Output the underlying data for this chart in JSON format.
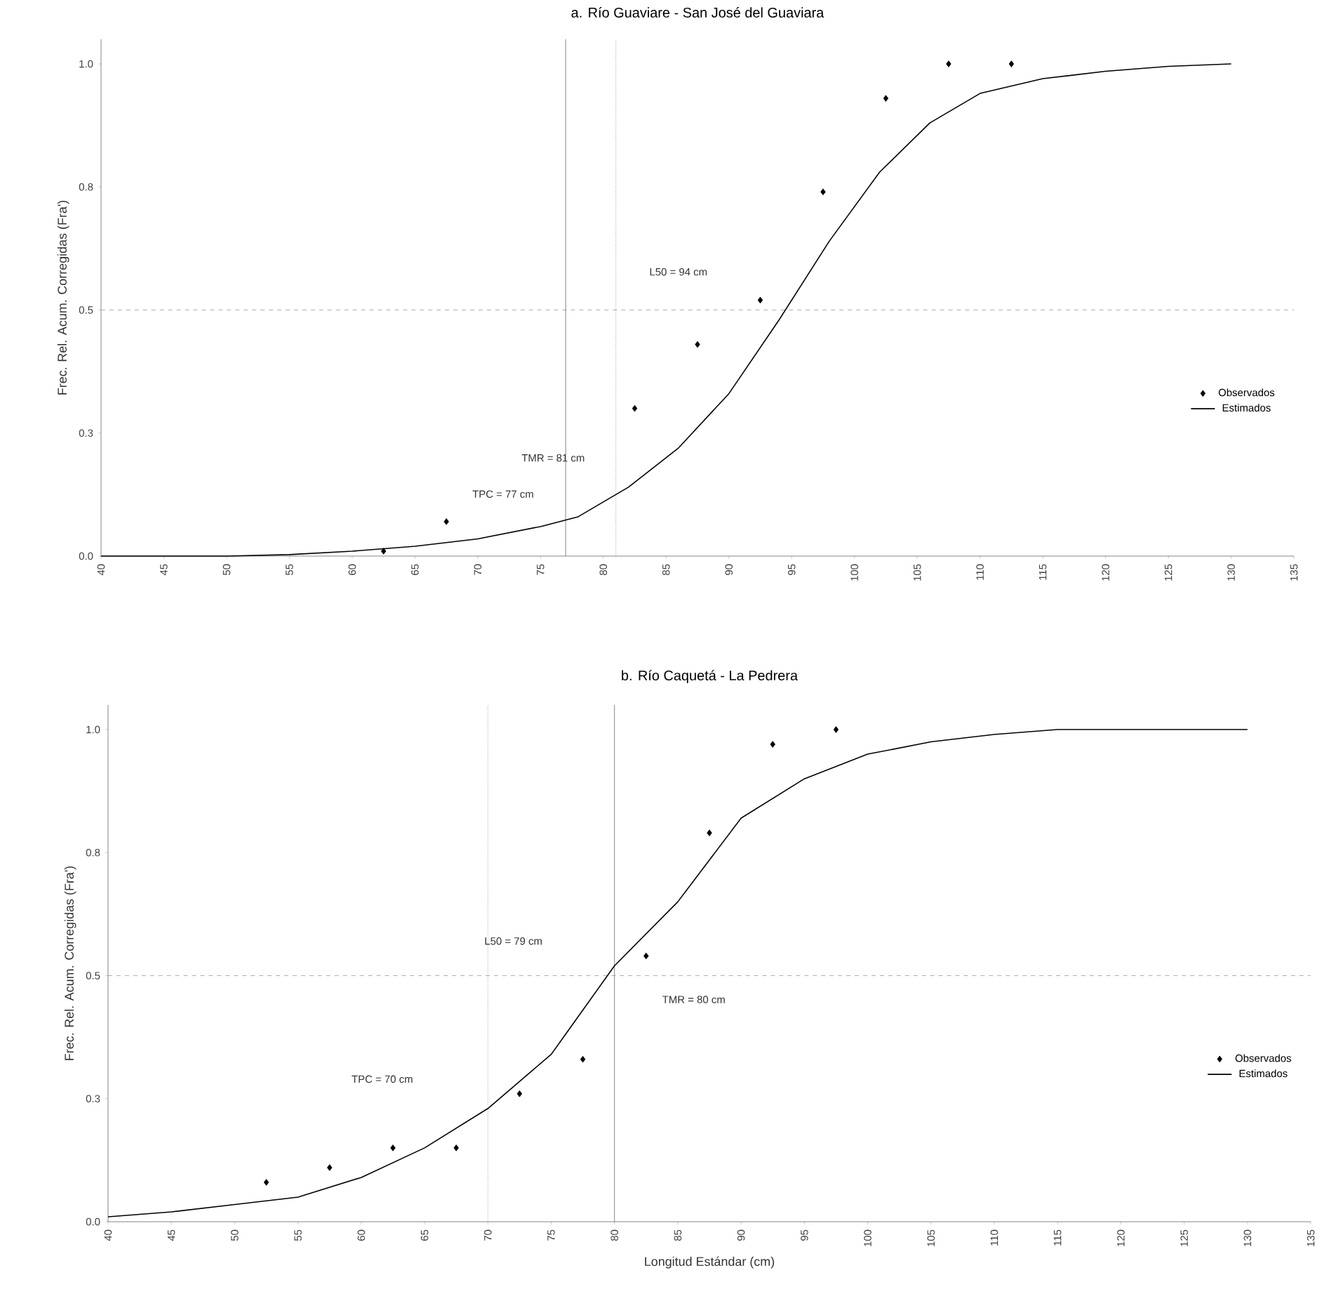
{
  "chart_data": [
    {
      "type": "scatter",
      "title": "a. Río Guaviare - San José del Guaviara",
      "ylabel": "Frec. Rel. Acum. Corregidas (Fra')",
      "xlim": [
        40,
        135
      ],
      "xticks": [
        40,
        45,
        50,
        55,
        60,
        65,
        70,
        75,
        80,
        85,
        90,
        95,
        100,
        105,
        110,
        115,
        120,
        125,
        130,
        135
      ],
      "ylim": [
        0,
        1.05
      ],
      "yticks": [
        {
          "value": 0,
          "label": "0.0"
        },
        {
          "value": 0.25,
          "label": "0.3"
        },
        {
          "value": 0.5,
          "label": "0.5"
        },
        {
          "value": 0.75,
          "label": "0.8"
        },
        {
          "value": 1.0,
          "label": "1.0"
        }
      ],
      "legend": "right",
      "series": [
        {
          "name": "Observados",
          "marker": "diamond",
          "color": "#000000",
          "x": [
            62.5,
            67.5,
            82.5,
            87.5,
            92.5,
            97.5,
            102.5,
            107.5,
            112.5
          ],
          "values": [
            0.01,
            0.07,
            0.3,
            0.43,
            0.52,
            0.74,
            0.93,
            1.0,
            1.0
          ]
        },
        {
          "name": "Estimados",
          "type": "line",
          "color": "#000000",
          "x": [
            40,
            50,
            55,
            60,
            65,
            70,
            75,
            78,
            82,
            86,
            90,
            94,
            98,
            102,
            106,
            110,
            115,
            120,
            125,
            130
          ],
          "values": [
            0,
            0,
            0.003,
            0.01,
            0.02,
            0.035,
            0.06,
            0.08,
            0.14,
            0.22,
            0.33,
            0.48,
            0.64,
            0.78,
            0.88,
            0.94,
            0.97,
            0.985,
            0.995,
            1.0
          ]
        }
      ],
      "ref_lines": [
        {
          "axis": "y",
          "value": 0.5,
          "line_style": "dashed",
          "color": "#999999"
        },
        {
          "axis": "x",
          "value": 77,
          "line_style": "solid",
          "color": "#666666"
        },
        {
          "axis": "x",
          "value": 81,
          "line_style": "dotted",
          "color": "#666666"
        }
      ],
      "annotations": [
        "L50 = 94 cm",
        "TMR = 81 cm",
        "TPC = 77 cm"
      ]
    },
    {
      "type": "scatter",
      "title": "b. Río Caquetá - La Pedrera",
      "xlabel": "Longitud Estándar (cm)",
      "ylabel": "Frec. Rel. Acum. Corregidas (Fra')",
      "xlim": [
        40,
        135
      ],
      "xticks": [
        40,
        45,
        50,
        55,
        60,
        65,
        70,
        75,
        80,
        85,
        90,
        95,
        100,
        105,
        110,
        115,
        120,
        125,
        130,
        135
      ],
      "ylim": [
        0,
        1.05
      ],
      "yticks": [
        {
          "value": 0,
          "label": "0.0"
        },
        {
          "value": 0.25,
          "label": "0.3"
        },
        {
          "value": 0.5,
          "label": "0.5"
        },
        {
          "value": 0.75,
          "label": "0.8"
        },
        {
          "value": 1.0,
          "label": "1.0"
        }
      ],
      "legend": "right",
      "series": [
        {
          "name": "Observados",
          "marker": "diamond",
          "color": "#000000",
          "x": [
            52.5,
            57.5,
            62.5,
            67.5,
            72.5,
            77.5,
            82.5,
            87.5,
            92.5,
            97.5
          ],
          "values": [
            0.08,
            0.11,
            0.15,
            0.15,
            0.26,
            0.33,
            0.54,
            0.79,
            0.97,
            1.0
          ]
        },
        {
          "name": "Estimados",
          "type": "line",
          "color": "#000000",
          "x": [
            40,
            45,
            50,
            55,
            60,
            65,
            70,
            75,
            80,
            85,
            90,
            95,
            100,
            105,
            110,
            115,
            120,
            125,
            130
          ],
          "values": [
            0.01,
            0.02,
            0.035,
            0.05,
            0.09,
            0.15,
            0.23,
            0.34,
            0.52,
            0.65,
            0.82,
            0.9,
            0.95,
            0.975,
            0.99,
            1.0,
            1.0,
            1.0,
            1.0
          ]
        }
      ],
      "ref_lines": [
        {
          "axis": "y",
          "value": 0.5,
          "line_style": "dashed",
          "color": "#999999"
        },
        {
          "axis": "x",
          "value": 80,
          "line_style": "solid",
          "color": "#666666"
        },
        {
          "axis": "x",
          "value": 70,
          "line_style": "dotted",
          "color": "#666666"
        }
      ],
      "annotations": [
        "L50 = 79 cm",
        "TMR = 80 cm",
        "TPC = 70 cm"
      ]
    }
  ]
}
